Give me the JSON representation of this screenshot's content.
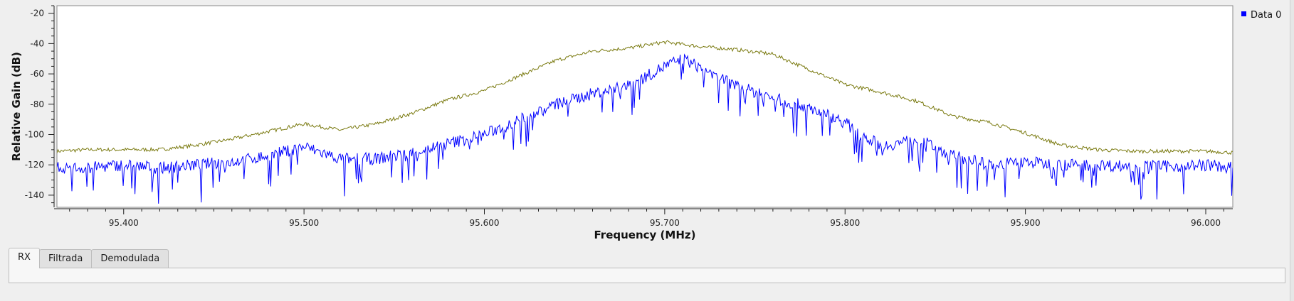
{
  "chart_data": {
    "type": "line",
    "title": "",
    "xlabel": "Frequency (MHz)",
    "ylabel": "Relative Gain (dB)",
    "xlim": [
      95.363,
      96.015
    ],
    "ylim": [
      -148,
      -15
    ],
    "xticks": [
      95.4,
      95.5,
      95.6,
      95.7,
      95.8,
      95.9,
      96.0
    ],
    "xtick_labels": [
      "95.400",
      "95.500",
      "95.600",
      "95.700",
      "95.800",
      "95.900",
      "96.000"
    ],
    "yticks": [
      -20,
      -40,
      -60,
      -80,
      -100,
      -120,
      -140
    ],
    "ytick_labels": [
      "-20",
      "-40",
      "-60",
      "-80",
      "-100",
      "-120",
      "-140"
    ],
    "grid": false,
    "legend_position": "top-right",
    "series": [
      {
        "name": "Data 0",
        "color": "#0000ff",
        "description_kind": "instantaneous spectrum",
        "x": [
          95.363,
          95.38,
          95.4,
          95.42,
          95.44,
          95.46,
          95.48,
          95.5,
          95.52,
          95.54,
          95.56,
          95.58,
          95.6,
          95.62,
          95.64,
          95.66,
          95.68,
          95.7,
          95.71,
          95.72,
          95.74,
          95.76,
          95.78,
          95.8,
          95.82,
          95.84,
          95.86,
          95.88,
          95.9,
          95.92,
          95.94,
          95.96,
          95.98,
          96.0,
          96.015
        ],
        "y": [
          -122,
          -122,
          -120,
          -122,
          -120,
          -118,
          -114,
          -108,
          -116,
          -116,
          -112,
          -106,
          -100,
          -90,
          -80,
          -73,
          -68,
          -55,
          -50,
          -56,
          -68,
          -76,
          -82,
          -92,
          -108,
          -103,
          -114,
          -120,
          -118,
          -120,
          -120,
          -121,
          -121,
          -120,
          -122
        ]
      },
      {
        "name": "",
        "color": "#7a7a10",
        "description_kind": "max hold",
        "x": [
          95.363,
          95.38,
          95.4,
          95.42,
          95.44,
          95.46,
          95.48,
          95.5,
          95.52,
          95.54,
          95.56,
          95.58,
          95.6,
          95.62,
          95.64,
          95.66,
          95.68,
          95.7,
          95.72,
          95.74,
          95.76,
          95.78,
          95.8,
          95.82,
          95.84,
          95.86,
          95.88,
          95.9,
          95.92,
          95.94,
          95.96,
          95.98,
          96.0,
          96.015
        ],
        "y": [
          -111,
          -110,
          -110,
          -110,
          -107,
          -103,
          -98,
          -93,
          -97,
          -93,
          -86,
          -77,
          -71,
          -61,
          -51,
          -45,
          -43,
          -39,
          -42,
          -44,
          -47,
          -57,
          -67,
          -72,
          -78,
          -88,
          -92,
          -99,
          -107,
          -110,
          -111,
          -111,
          -111,
          -112
        ]
      }
    ]
  },
  "legend": {
    "items": [
      {
        "label": "Data 0",
        "color": "#0000ff"
      }
    ]
  },
  "tabs": [
    "RX",
    "Filtrada",
    "Demodulada"
  ],
  "active_tab": "RX"
}
